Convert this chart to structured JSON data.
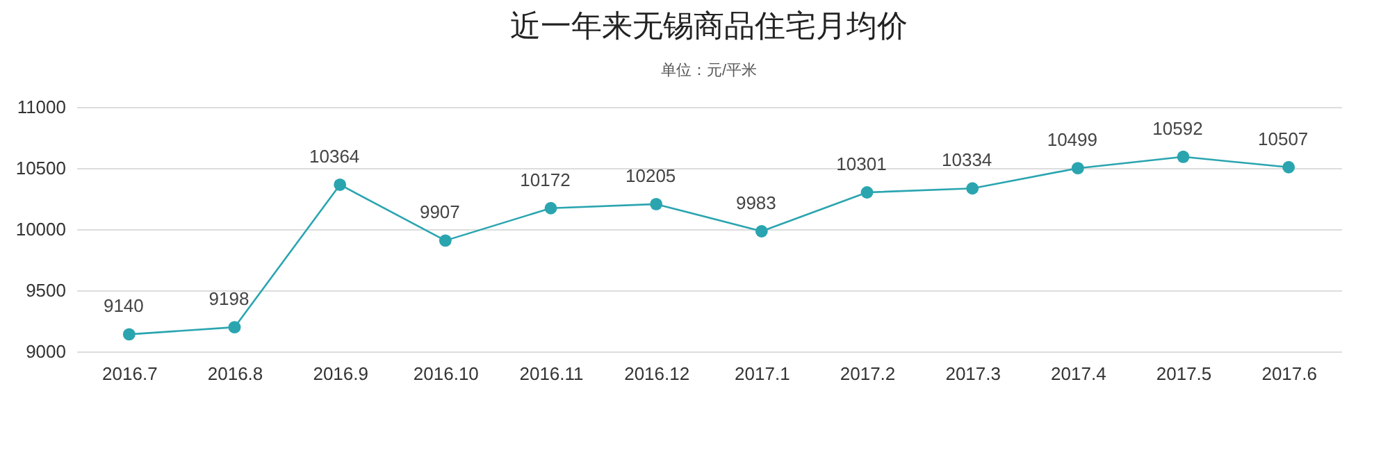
{
  "chart_data": {
    "type": "line",
    "title": "近一年来无锡商品住宅月均价",
    "subtitle": "单位：元/平米",
    "categories": [
      "2016.7",
      "2016.8",
      "2016.9",
      "2016.10",
      "2016.11",
      "2016.12",
      "2017.1",
      "2017.2",
      "2017.3",
      "2017.4",
      "2017.5",
      "2017.6"
    ],
    "series": [
      {
        "color": "#2aa5b0",
        "values": [
          9140,
          9198,
          10364,
          9907,
          10172,
          10205,
          9983,
          10301,
          10334,
          10499,
          10592,
          10507
        ]
      }
    ],
    "ylim": [
      9000,
      11000
    ],
    "yticks": [
      9000,
      9500,
      10000,
      10500,
      11000
    ],
    "grid": "y",
    "marker": "circle",
    "data_labels": true,
    "legend": false
  }
}
